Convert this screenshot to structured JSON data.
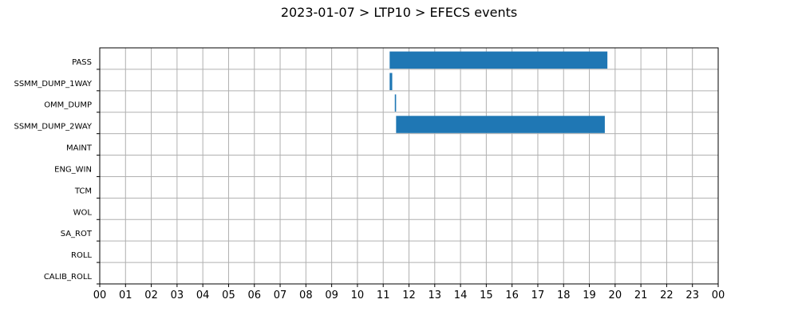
{
  "chart_data": {
    "type": "bar",
    "orientation": "horizontal",
    "title": "2023-01-07 > LTP10 > EFECS events",
    "xlabel": "",
    "ylabel": "",
    "categories": [
      "PASS",
      "SSMM_DUMP_1WAY",
      "OMM_DUMP",
      "SSMM_DUMP_2WAY",
      "MAINT",
      "ENG_WIN",
      "TCM",
      "WOL",
      "SA_ROT",
      "ROLL",
      "CALIB_ROLL"
    ],
    "x_tick_labels": [
      "00",
      "01",
      "02",
      "03",
      "04",
      "05",
      "06",
      "07",
      "08",
      "09",
      "10",
      "11",
      "12",
      "13",
      "14",
      "15",
      "16",
      "17",
      "18",
      "19",
      "20",
      "21",
      "22",
      "23",
      "00"
    ],
    "xlim": [
      0,
      24
    ],
    "grid": true,
    "bar_color": "#1f77b4",
    "events": [
      {
        "category": "PASS",
        "start": 11.25,
        "end": 19.7
      },
      {
        "category": "SSMM_DUMP_1WAY",
        "start": 11.25,
        "end": 11.35
      },
      {
        "category": "OMM_DUMP",
        "start": 11.45,
        "end": 11.5
      },
      {
        "category": "SSMM_DUMP_2WAY",
        "start": 11.5,
        "end": 19.6
      }
    ]
  }
}
